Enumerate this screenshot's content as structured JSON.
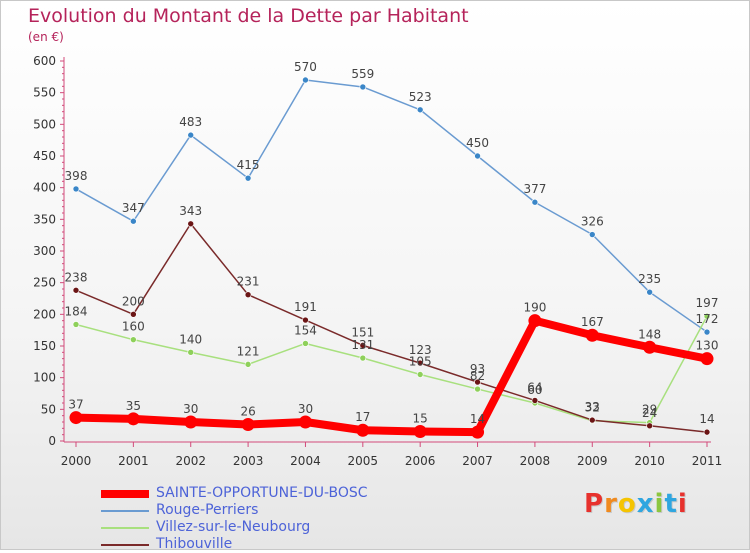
{
  "title": "Evolution du Montant de la Dette par Habitant",
  "subtitle": "(en €)",
  "logo": {
    "text": "Proxiti",
    "letters": [
      "P",
      "r",
      "o",
      "x",
      "i",
      "t",
      "i"
    ],
    "letter_colors": [
      "#e7312d",
      "#f08a1f",
      "#f5c400",
      "#2fa6e0",
      "#8cc63f",
      "#2fa6e0",
      "#e7312d"
    ]
  },
  "chart_data": {
    "type": "line",
    "title": "Evolution du Montant de la Dette par Habitant",
    "subtitle": "(en €)",
    "xlabel": "",
    "ylabel": "",
    "x": [
      "2000",
      "2001",
      "2002",
      "2003",
      "2004",
      "2005",
      "2006",
      "2007",
      "2008",
      "2009",
      "2010",
      "2011"
    ],
    "ylim": [
      0,
      600
    ],
    "yticks": [
      0,
      50,
      100,
      150,
      200,
      250,
      300,
      350,
      400,
      450,
      500,
      550,
      600
    ],
    "grid": false,
    "legend_position": "bottom-left",
    "series": [
      {
        "name": "Rouge-Perriers",
        "color": "#6a9bd1",
        "marker": "#3a86c8",
        "emphasis": false,
        "values": [
          398,
          347,
          483,
          415,
          570,
          559,
          523,
          450,
          377,
          326,
          235,
          172
        ]
      },
      {
        "name": "Villez-sur-le-Neubourg",
        "color": "#a8e07e",
        "marker": "#8ed05a",
        "emphasis": false,
        "values": [
          184,
          160,
          140,
          121,
          154,
          131,
          105,
          82,
          60,
          32,
          29,
          197
        ]
      },
      {
        "name": "Thibouville",
        "color": "#7a2a2a",
        "marker": "#6b1515",
        "emphasis": false,
        "values": [
          238,
          200,
          343,
          231,
          191,
          151,
          123,
          93,
          64,
          33,
          24,
          14
        ]
      },
      {
        "name": "SAINTE-OPPORTUNE-DU-BOSC",
        "color": "#ff0000",
        "marker": "#ff0000",
        "emphasis": true,
        "values": [
          37,
          35,
          30,
          26,
          30,
          17,
          15,
          14,
          190,
          167,
          148,
          130
        ]
      }
    ],
    "legend_order": [
      "SAINTE-OPPORTUNE-DU-BOSC",
      "Rouge-Perriers",
      "Villez-sur-le-Neubourg",
      "Thibouville"
    ]
  }
}
